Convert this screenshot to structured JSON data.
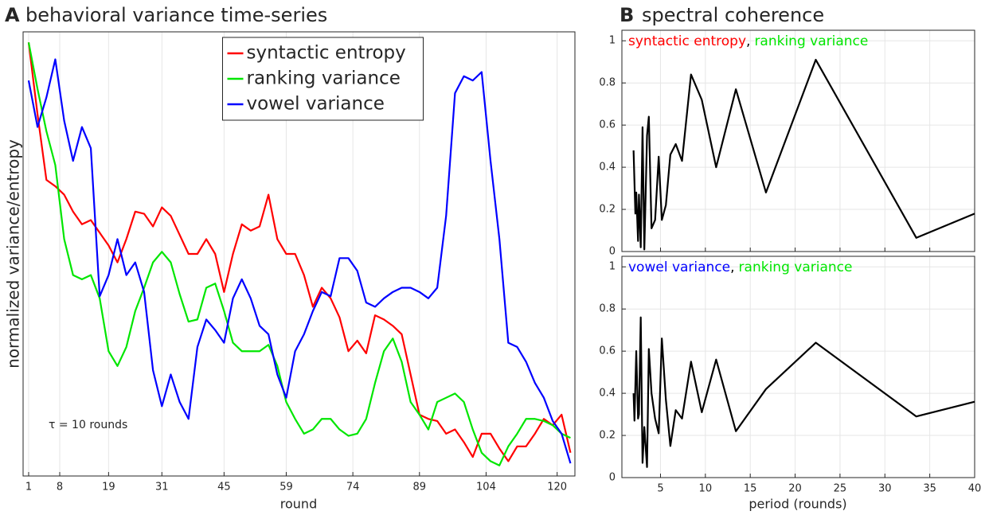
{
  "chart_data": [
    {
      "type": "line",
      "panel_label": "A",
      "title": "behavioral variance time-series",
      "xlabel": "round",
      "ylabel": "normalized variance/entropy",
      "annotation": "τ = 10 rounds",
      "x": [
        1,
        3,
        5,
        7,
        9,
        11,
        13,
        15,
        17,
        19,
        21,
        23,
        25,
        27,
        29,
        31,
        33,
        35,
        37,
        39,
        41,
        43,
        45,
        47,
        49,
        51,
        53,
        55,
        57,
        59,
        61,
        63,
        65,
        67,
        69,
        71,
        73,
        75,
        77,
        79,
        81,
        83,
        85,
        87,
        89,
        91,
        93,
        95,
        97,
        99,
        101,
        103,
        105,
        107,
        109,
        111,
        113,
        115,
        117,
        119,
        121,
        123
      ],
      "xlim": [
        -0.25,
        124
      ],
      "xticks": [
        1,
        8,
        19,
        31,
        45,
        59,
        74,
        89,
        104,
        120
      ],
      "ylim": [
        -0.025,
        1.025
      ],
      "grid": true,
      "legend": "upper center",
      "series": [
        {
          "name": "syntactic entropy",
          "color": "#ff0000",
          "values": [
            1.0,
            0.83,
            0.675,
            0.66,
            0.64,
            0.6,
            0.57,
            0.58,
            0.55,
            0.52,
            0.48,
            0.535,
            0.6,
            0.595,
            0.565,
            0.61,
            0.59,
            0.545,
            0.5,
            0.5,
            0.535,
            0.5,
            0.41,
            0.5,
            0.57,
            0.555,
            0.565,
            0.64,
            0.535,
            0.5,
            0.5,
            0.45,
            0.375,
            0.42,
            0.395,
            0.35,
            0.27,
            0.295,
            0.265,
            0.355,
            0.345,
            0.33,
            0.31,
            0.215,
            0.12,
            0.11,
            0.105,
            0.075,
            0.085,
            0.055,
            0.02,
            0.075,
            0.075,
            0.04,
            0.01,
            0.045,
            0.045,
            0.075,
            0.11,
            0.095,
            0.12,
            0.03
          ]
        },
        {
          "name": "ranking variance",
          "color": "#00e600",
          "values": [
            1.0,
            0.89,
            0.79,
            0.71,
            0.535,
            0.45,
            0.44,
            0.45,
            0.395,
            0.27,
            0.235,
            0.28,
            0.365,
            0.42,
            0.48,
            0.505,
            0.48,
            0.405,
            0.34,
            0.345,
            0.42,
            0.43,
            0.365,
            0.29,
            0.27,
            0.27,
            0.27,
            0.285,
            0.235,
            0.15,
            0.11,
            0.075,
            0.085,
            0.11,
            0.11,
            0.085,
            0.07,
            0.075,
            0.11,
            0.195,
            0.27,
            0.3,
            0.245,
            0.15,
            0.12,
            0.085,
            0.15,
            0.16,
            0.17,
            0.15,
            0.085,
            0.03,
            0.01,
            0.0,
            0.045,
            0.075,
            0.11,
            0.11,
            0.105,
            0.095,
            0.075,
            0.065
          ]
        },
        {
          "name": "vowel variance",
          "color": "#0000ff",
          "values": [
            0.91,
            0.8,
            0.87,
            0.96,
            0.815,
            0.72,
            0.8,
            0.75,
            0.4,
            0.45,
            0.535,
            0.45,
            0.48,
            0.41,
            0.225,
            0.14,
            0.215,
            0.15,
            0.11,
            0.28,
            0.345,
            0.32,
            0.29,
            0.395,
            0.44,
            0.395,
            0.33,
            0.31,
            0.215,
            0.16,
            0.27,
            0.31,
            0.365,
            0.41,
            0.4,
            0.49,
            0.49,
            0.46,
            0.385,
            0.375,
            0.395,
            0.41,
            0.42,
            0.42,
            0.41,
            0.395,
            0.42,
            0.59,
            0.88,
            0.92,
            0.91,
            0.93,
            0.72,
            0.535,
            0.29,
            0.28,
            0.245,
            0.195,
            0.16,
            0.105,
            0.075,
            0.005
          ]
        }
      ]
    },
    {
      "type": "line",
      "panel_label": "B",
      "title": "spectral coherence",
      "annotation": [
        {
          "text": "syntactic entropy",
          "color": "#ff0000"
        },
        {
          "text": ",",
          "color": "#000000"
        },
        {
          "text": "ranking variance",
          "color": "#00e600"
        }
      ],
      "x": [
        2.0,
        2.2,
        2.3,
        2.5,
        2.6,
        2.8,
        3.0,
        3.2,
        3.5,
        3.7,
        4.0,
        4.4,
        4.8,
        5.15,
        5.6,
        6.1,
        6.7,
        7.4,
        8.4,
        9.6,
        11.2,
        13.4,
        16.75,
        22.3,
        33.5,
        40
      ],
      "xlim": [
        0.7,
        40
      ],
      "xticks": [
        5,
        10,
        15,
        20,
        25,
        30,
        35,
        40
      ],
      "xtick_labels": false,
      "ylim": [
        0,
        1.05
      ],
      "yticks": [
        0,
        0.2,
        0.4,
        0.6,
        0.8,
        1
      ],
      "grid": true,
      "series": [
        {
          "color": "#000000",
          "values": [
            0.48,
            0.18,
            0.28,
            0.05,
            0.27,
            0.02,
            0.59,
            0.01,
            0.55,
            0.64,
            0.11,
            0.15,
            0.45,
            0.15,
            0.22,
            0.46,
            0.51,
            0.43,
            0.84,
            0.72,
            0.4,
            0.77,
            0.28,
            0.91,
            0.065,
            0.18
          ]
        }
      ]
    },
    {
      "type": "line",
      "xlabel": "period (rounds)",
      "annotation": [
        {
          "text": "vowel variance",
          "color": "#0000ff"
        },
        {
          "text": ",",
          "color": "#000000"
        },
        {
          "text": "ranking variance",
          "color": "#00e600"
        }
      ],
      "x": [
        2.0,
        2.1,
        2.3,
        2.5,
        2.6,
        2.8,
        3.0,
        3.2,
        3.5,
        3.7,
        4.0,
        4.4,
        4.8,
        5.15,
        5.6,
        6.1,
        6.7,
        7.4,
        8.4,
        9.6,
        11.2,
        13.4,
        16.75,
        22.3,
        33.5,
        40
      ],
      "xlim": [
        0.7,
        40
      ],
      "xticks": [
        5,
        10,
        15,
        20,
        25,
        30,
        35,
        40
      ],
      "xtick_labels": true,
      "ylim": [
        0,
        1.05
      ],
      "yticks": [
        0,
        0.2,
        0.4,
        0.6,
        0.8,
        1
      ],
      "grid": true,
      "series": [
        {
          "color": "#000000",
          "values": [
            0.4,
            0.27,
            0.6,
            0.28,
            0.3,
            0.76,
            0.07,
            0.24,
            0.05,
            0.61,
            0.4,
            0.28,
            0.21,
            0.66,
            0.37,
            0.15,
            0.32,
            0.28,
            0.55,
            0.31,
            0.56,
            0.22,
            0.42,
            0.64,
            0.29,
            0.36
          ]
        }
      ]
    }
  ]
}
